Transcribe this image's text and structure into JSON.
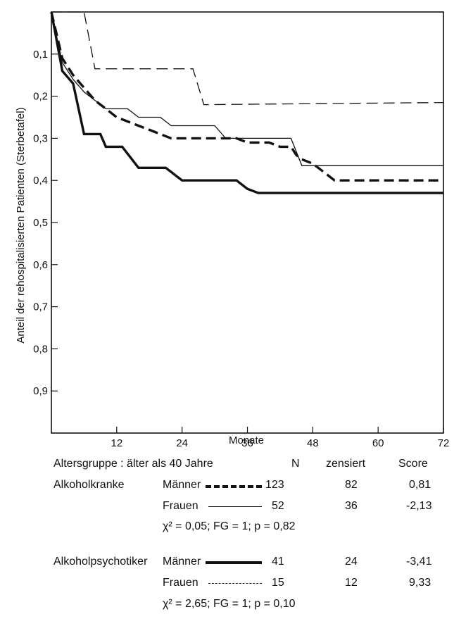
{
  "chart_data": {
    "type": "line",
    "step": true,
    "xlabel": "Monate",
    "ylabel": "Anteil der rehospitalisierten Patienten (Sterbetafel)",
    "xlim": [
      0,
      72
    ],
    "ylim": [
      0,
      1.0
    ],
    "y_inverted": true,
    "grid": false,
    "x_ticks": [
      12,
      24,
      36,
      48,
      60,
      72
    ],
    "y_ticks": [
      0.1,
      0.2,
      0.3,
      0.4,
      0.5,
      0.6,
      0.7,
      0.8,
      0.9
    ],
    "x_tick_labels": [
      "12",
      "24",
      "36",
      "48",
      "60",
      "72"
    ],
    "y_tick_labels": [
      "0,1",
      "0,2",
      "0,3",
      "0,4",
      "0,5",
      "0,6",
      "0,7",
      "0,8",
      "0,9"
    ],
    "series": [
      {
        "key": "alk_maenner",
        "style": "thick-dashed",
        "color": "#111111",
        "points": [
          [
            0,
            0
          ],
          [
            2,
            0.11
          ],
          [
            4,
            0.15
          ],
          [
            6,
            0.18
          ],
          [
            8,
            0.21
          ],
          [
            10,
            0.23
          ],
          [
            12,
            0.25
          ],
          [
            14,
            0.26
          ],
          [
            16,
            0.27
          ],
          [
            18,
            0.28
          ],
          [
            20,
            0.29
          ],
          [
            22,
            0.3
          ],
          [
            34,
            0.3
          ],
          [
            36,
            0.31
          ],
          [
            40,
            0.31
          ],
          [
            42,
            0.32
          ],
          [
            44,
            0.32
          ],
          [
            45,
            0.34
          ],
          [
            46,
            0.35
          ],
          [
            48,
            0.36
          ],
          [
            49,
            0.37
          ],
          [
            50,
            0.38
          ],
          [
            52,
            0.4
          ],
          [
            72,
            0.4
          ]
        ]
      },
      {
        "key": "alk_frauen",
        "style": "thin-solid",
        "color": "#111111",
        "points": [
          [
            0,
            0
          ],
          [
            2,
            0.12
          ],
          [
            4,
            0.16
          ],
          [
            6,
            0.19
          ],
          [
            8,
            0.21
          ],
          [
            10,
            0.23
          ],
          [
            14,
            0.23
          ],
          [
            16,
            0.25
          ],
          [
            20,
            0.25
          ],
          [
            22,
            0.27
          ],
          [
            30,
            0.27
          ],
          [
            32,
            0.3
          ],
          [
            44,
            0.3
          ],
          [
            46,
            0.365
          ],
          [
            72,
            0.365
          ]
        ]
      },
      {
        "key": "psy_maenner",
        "style": "thick-solid",
        "color": "#111111",
        "points": [
          [
            0,
            0
          ],
          [
            2,
            0.14
          ],
          [
            4,
            0.17
          ],
          [
            6,
            0.29
          ],
          [
            9,
            0.29
          ],
          [
            10,
            0.32
          ],
          [
            13,
            0.32
          ],
          [
            16,
            0.37
          ],
          [
            21,
            0.37
          ],
          [
            24,
            0.4
          ],
          [
            34,
            0.4
          ],
          [
            36,
            0.42
          ],
          [
            38,
            0.43
          ],
          [
            72,
            0.43
          ]
        ]
      },
      {
        "key": "psy_frauen",
        "style": "thin-dashed",
        "color": "#111111",
        "points": [
          [
            0,
            0
          ],
          [
            6,
            0
          ],
          [
            8,
            0.135
          ],
          [
            26,
            0.135
          ],
          [
            28,
            0.22
          ],
          [
            72,
            0.215
          ]
        ]
      }
    ]
  },
  "legend": {
    "header": {
      "group": "Altersgruppe : älter als 40 Jahre",
      "n": "N",
      "zensiert": "zensiert",
      "score": "Score"
    },
    "sections": [
      {
        "title": "Alkoholkranke",
        "rows": [
          {
            "label": "Männer",
            "style": "thick-dashed",
            "n": "123",
            "zensiert": "82",
            "score": "0,81"
          },
          {
            "label": "Frauen",
            "style": "thin-solid",
            "n": "52",
            "zensiert": "36",
            "score": "-2,13"
          }
        ],
        "stat": "χ² = 0,05; FG = 1; p = 0,82"
      },
      {
        "title": "Alkoholpsychotiker",
        "rows": [
          {
            "label": "Männer",
            "style": "thick-solid",
            "n": "41",
            "zensiert": "24",
            "score": "-3,41"
          },
          {
            "label": "Frauen",
            "style": "thin-dashed",
            "n": "15",
            "zensiert": "12",
            "score": "9,33"
          }
        ],
        "stat": "χ² = 2,65; FG = 1; p = 0,10"
      }
    ]
  }
}
